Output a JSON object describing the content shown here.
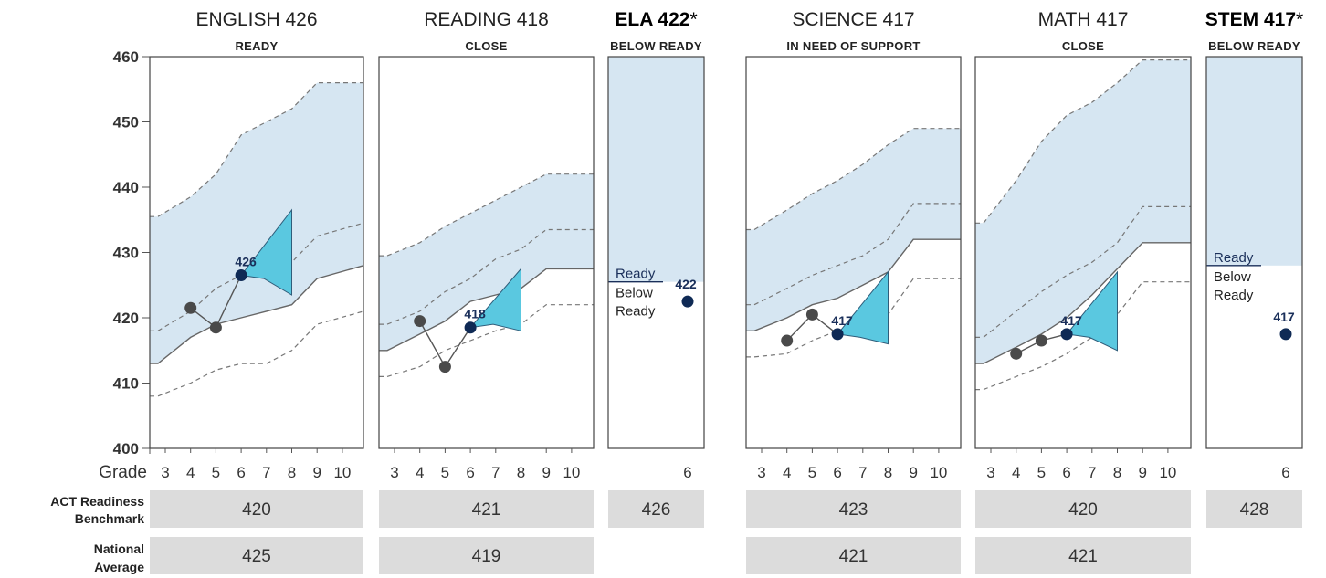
{
  "grade_label": "Grade",
  "rows": {
    "benchmark_line1": "ACT Readiness",
    "benchmark_line2": "Benchmark",
    "national_line1": "National",
    "national_line2": "Average"
  },
  "colors": {
    "band": "#d6e6f2",
    "projection": "#5ac8e0",
    "point_past": "#4a4a4a",
    "point_current": "#0f2a55",
    "table_cell": "#dcdcdc"
  },
  "chart_data": {
    "type": "line",
    "ylim": [
      400,
      460
    ],
    "yticks": [
      400,
      410,
      420,
      430,
      440,
      450,
      460
    ],
    "grid": false,
    "panels": [
      {
        "kind": "growth",
        "title": "ENGLISH 426",
        "status": "READY",
        "x_labels": [
          "3",
          "4",
          "5",
          "6",
          "7",
          "8",
          "9",
          "10"
        ],
        "band_upper": [
          435.5,
          435.5,
          438.5,
          442,
          448,
          450,
          452,
          456,
          456
        ],
        "band_lower": [
          413,
          413,
          417,
          419,
          420,
          421,
          422,
          426,
          428
        ],
        "mid_dashed": [
          418,
          418,
          421,
          424.5,
          426.5,
          428,
          428.5,
          432.5,
          434.5
        ],
        "low_dashed": [
          408,
          408,
          410,
          412,
          413,
          413,
          415,
          419,
          421
        ],
        "scores": [
          {
            "grade": 4,
            "value": 421.5
          },
          {
            "grade": 5,
            "value": 418.5
          },
          {
            "grade": 6,
            "value": 426.5
          }
        ],
        "current_label": "426",
        "projection": {
          "upper": 436.5,
          "lower": 423.5,
          "mid": 426
        }
      },
      {
        "kind": "growth",
        "title": "READING 418",
        "status": "CLOSE",
        "x_labels": [
          "3",
          "4",
          "5",
          "6",
          "7",
          "8",
          "9",
          "10"
        ],
        "band_upper": [
          429.5,
          429.5,
          431.5,
          434,
          436,
          438,
          440,
          442,
          442
        ],
        "band_lower": [
          415,
          415,
          417.5,
          419.5,
          422.5,
          423.5,
          424.5,
          427.5,
          427.5
        ],
        "mid_dashed": [
          419,
          419,
          421,
          424,
          426,
          429,
          430.5,
          433.5,
          433.5
        ],
        "low_dashed": [
          411,
          411,
          412.5,
          415,
          416.5,
          418,
          419,
          422,
          422
        ],
        "scores": [
          {
            "grade": 4,
            "value": 419.5
          },
          {
            "grade": 5,
            "value": 412.5
          },
          {
            "grade": 6,
            "value": 418.5
          }
        ],
        "current_label": "418",
        "projection": {
          "upper": 427.5,
          "lower": 418,
          "mid": 419
        }
      },
      {
        "kind": "single",
        "title_bold": "ELA 422",
        "title_suffix": "*",
        "status": "BELOW READY",
        "x_label": "6",
        "ready_line": 425.5,
        "ready_text": "Ready",
        "below_text_1": "Below",
        "below_text_2": "Ready",
        "score": 422.5,
        "score_label": "422"
      },
      {
        "kind": "growth",
        "title": "SCIENCE 417",
        "status": "IN NEED OF SUPPORT",
        "x_labels": [
          "3",
          "4",
          "5",
          "6",
          "7",
          "8",
          "9",
          "10"
        ],
        "band_upper": [
          433.5,
          433.5,
          436.5,
          439,
          441,
          443.5,
          446.5,
          449,
          449
        ],
        "band_lower": [
          418,
          418,
          420,
          422,
          423,
          425,
          427,
          432,
          432
        ],
        "mid_dashed": [
          422,
          422,
          424.5,
          426.5,
          428,
          429.5,
          432,
          437.5,
          437.5
        ],
        "low_dashed": [
          414,
          414,
          414.5,
          416.5,
          418,
          419,
          420.5,
          426,
          426
        ],
        "scores": [
          {
            "grade": 4,
            "value": 416.5
          },
          {
            "grade": 5,
            "value": 420.5
          },
          {
            "grade": 6,
            "value": 417.5
          }
        ],
        "current_label": "417",
        "projection": {
          "upper": 427,
          "lower": 416,
          "mid": 417
        }
      },
      {
        "kind": "growth",
        "title": "MATH 417",
        "status": "CLOSE",
        "x_labels": [
          "3",
          "4",
          "5",
          "6",
          "7",
          "8",
          "9",
          "10"
        ],
        "band_upper": [
          434.5,
          434.5,
          441,
          447,
          451,
          453,
          456,
          459.5,
          459.5
        ],
        "band_lower": [
          413,
          413,
          415.5,
          417.5,
          420,
          423.5,
          427.5,
          431.5,
          431.5
        ],
        "mid_dashed": [
          417,
          417,
          421,
          424,
          426.5,
          428.5,
          431.5,
          437,
          437
        ],
        "low_dashed": [
          409,
          409,
          411,
          412.5,
          414.5,
          417,
          420.5,
          425.5,
          425.5
        ],
        "scores": [
          {
            "grade": 4,
            "value": 414.5
          },
          {
            "grade": 5,
            "value": 416.5
          },
          {
            "grade": 6,
            "value": 417.5
          }
        ],
        "current_label": "417",
        "projection": {
          "upper": 427,
          "lower": 415,
          "mid": 417
        }
      },
      {
        "kind": "single",
        "title_bold": "STEM 417",
        "title_suffix": "*",
        "status": "BELOW READY",
        "x_label": "6",
        "ready_line": 428,
        "ready_text": "Ready",
        "below_text_1": "Below",
        "below_text_2": "Ready",
        "score": 417.5,
        "score_label": "417"
      }
    ],
    "table": {
      "benchmark": [
        "420",
        "421",
        "426",
        "423",
        "420",
        "428"
      ],
      "national": [
        "425",
        "419",
        "",
        "421",
        "421",
        ""
      ]
    }
  }
}
